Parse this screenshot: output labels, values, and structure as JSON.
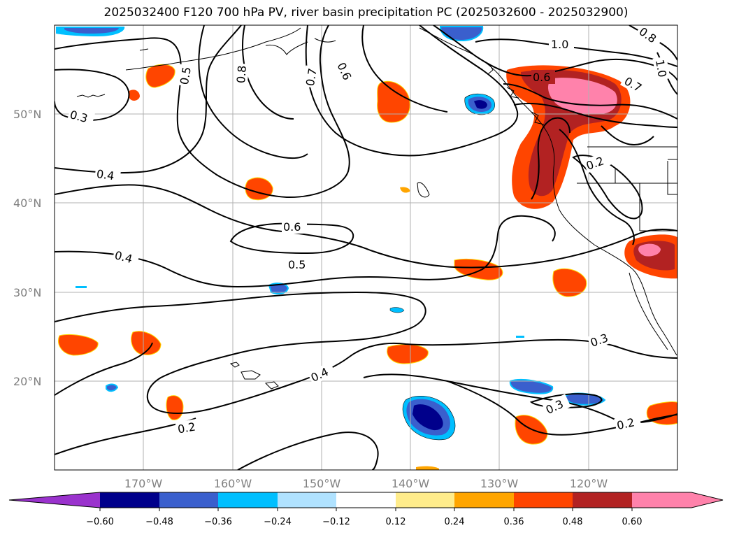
{
  "title": "2025032400 F120 700 hPa PV, river basin precipitation PC (2025032600 - 2025032900)",
  "latitude_labels": [
    "50°N",
    "40°N",
    "30°N",
    "20°N"
  ],
  "longitude_labels": [
    "170°W",
    "160°W",
    "150°W",
    "140°W",
    "130°W",
    "120°W"
  ],
  "contour_labels": [
    "1.0",
    "0.8",
    "1.0",
    "0.7",
    "0.6",
    "0.5",
    "0.8",
    "0.7",
    "0.6",
    "0.3",
    "0.4",
    "0.6",
    "0.2",
    "0.4",
    "0.5",
    "0.3",
    "0.4",
    "0.3",
    "0.2",
    "0.2"
  ],
  "colorbar": {
    "tick_labels": [
      "−0.60",
      "−0.48",
      "−0.36",
      "−0.24",
      "−0.12",
      "0.12",
      "0.24",
      "0.36",
      "0.48",
      "0.60"
    ],
    "colors": [
      "#9a32cd",
      "#00008b",
      "#3a5fcd",
      "#00bfff",
      "#b0e2ff",
      "#ffffff",
      "#ffec8b",
      "#ffa500",
      "#ff4500",
      "#b22222",
      "#ff82ab",
      "#ff82ab"
    ]
  },
  "chart_data": {
    "type": "heatmap",
    "title": "2025032400 F120 700 hPa PV, river basin precipitation PC (2025032600 - 2025032900)",
    "field_contours": "700 hPa PV",
    "field_shaded": "river basin precipitation PC",
    "lon_range": [
      -180,
      -110
    ],
    "lat_range": [
      10,
      60
    ],
    "contour_levels": [
      0.2,
      0.3,
      0.4,
      0.5,
      0.6,
      0.7,
      0.8,
      1.0
    ],
    "colorbar_bounds": [
      -0.6,
      -0.48,
      -0.36,
      -0.24,
      -0.12,
      0.12,
      0.24,
      0.36,
      0.48,
      0.6
    ],
    "grid": true
  }
}
